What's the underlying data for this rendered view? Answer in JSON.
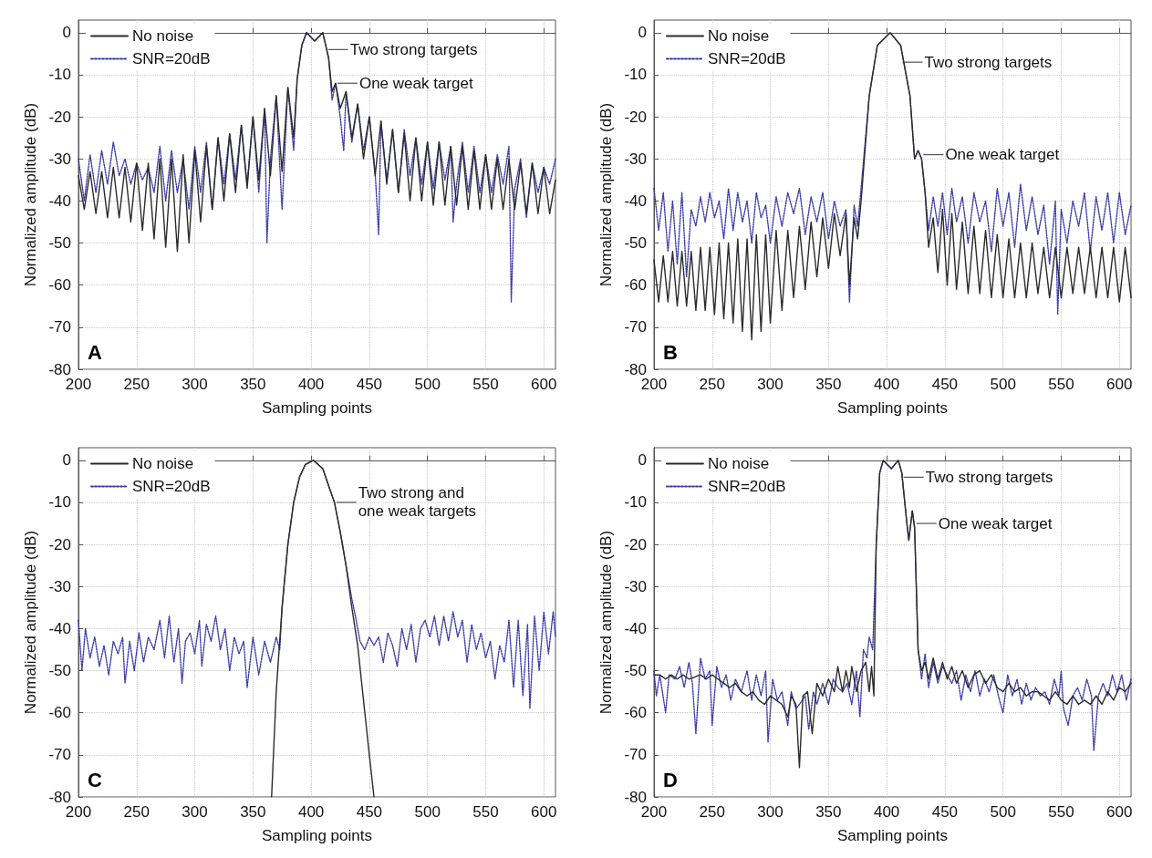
{
  "chart_data": [
    {
      "type": "line",
      "xlabel": "Sampling points",
      "ylabel": "Normalized amplitude (dB)",
      "xlim": [
        200,
        610
      ],
      "ylim": [
        -80,
        3
      ],
      "xticks": [
        200,
        250,
        300,
        350,
        400,
        450,
        500,
        550,
        600
      ],
      "yticks": [
        -80,
        -70,
        -60,
        -50,
        -40,
        -30,
        -20,
        -10,
        0
      ],
      "grid": true,
      "legend": "top left",
      "annotations": [
        {
          "text": "Two strong targets",
          "x": 413,
          "y": -4
        },
        {
          "text": "One weak target",
          "x": 421,
          "y": -12
        },
        "A"
      ],
      "series": [
        {
          "name": "No noise",
          "color": "#2b2b2b",
          "line_style": "solid",
          "x": [
            200,
            205,
            210,
            215,
            220,
            225,
            230,
            235,
            240,
            245,
            250,
            255,
            260,
            265,
            270,
            275,
            280,
            285,
            290,
            295,
            300,
            305,
            310,
            315,
            320,
            325,
            330,
            335,
            340,
            345,
            350,
            355,
            360,
            365,
            370,
            375,
            380,
            385,
            388,
            392,
            396,
            403,
            410,
            415,
            418,
            421,
            425,
            430,
            435,
            440,
            445,
            450,
            455,
            460,
            465,
            470,
            475,
            480,
            485,
            490,
            495,
            500,
            505,
            510,
            515,
            520,
            525,
            530,
            535,
            540,
            545,
            550,
            555,
            560,
            565,
            570,
            575,
            580,
            585,
            590,
            595,
            600,
            605,
            610
          ],
          "values": [
            -34,
            -42,
            -33,
            -43,
            -33,
            -44,
            -32,
            -44,
            -32,
            -45,
            -31,
            -47,
            -31,
            -49,
            -30,
            -51,
            -30,
            -52,
            -29,
            -50,
            -28,
            -45,
            -27,
            -42,
            -25,
            -40,
            -24,
            -38,
            -22,
            -37,
            -20,
            -35,
            -18,
            -34,
            -15,
            -33,
            -13,
            -25,
            -11,
            -3,
            0,
            -2,
            0,
            -6,
            -14,
            -12,
            -18,
            -14,
            -25,
            -17,
            -30,
            -20,
            -34,
            -21,
            -36,
            -23,
            -38,
            -24,
            -40,
            -25,
            -40,
            -26,
            -41,
            -26,
            -41,
            -27,
            -41,
            -27,
            -42,
            -28,
            -42,
            -29,
            -42,
            -30,
            -42,
            -30,
            -42,
            -31,
            -43,
            -31,
            -43,
            -32,
            -43,
            -35
          ]
        },
        {
          "name": "SNR=20dB",
          "color": "#3b3ba8",
          "line_style": "dotted",
          "x": [
            200,
            205,
            210,
            215,
            220,
            225,
            230,
            235,
            240,
            245,
            250,
            255,
            260,
            265,
            270,
            275,
            280,
            285,
            290,
            295,
            300,
            305,
            310,
            315,
            320,
            325,
            330,
            335,
            340,
            345,
            350,
            355,
            360,
            362,
            365,
            370,
            375,
            380,
            385,
            388,
            392,
            396,
            403,
            410,
            415,
            418,
            421,
            425,
            428,
            430,
            435,
            440,
            445,
            450,
            455,
            458,
            460,
            465,
            470,
            475,
            480,
            485,
            490,
            495,
            500,
            505,
            510,
            515,
            520,
            522,
            525,
            530,
            535,
            540,
            545,
            550,
            555,
            560,
            565,
            570,
            572,
            575,
            580,
            585,
            590,
            595,
            600,
            605,
            610
          ],
          "values": [
            -30,
            -40,
            -29,
            -38,
            -28,
            -36,
            -26,
            -34,
            -30,
            -36,
            -31,
            -35,
            -32,
            -38,
            -27,
            -40,
            -28,
            -38,
            -30,
            -42,
            -27,
            -38,
            -26,
            -42,
            -25,
            -36,
            -24,
            -35,
            -22,
            -36,
            -20,
            -38,
            -18,
            -50,
            -30,
            -15,
            -42,
            -13,
            -28,
            -11,
            -3,
            0,
            -2,
            0,
            -6,
            -16,
            -12,
            -20,
            -28,
            -14,
            -26,
            -17,
            -28,
            -20,
            -33,
            -48,
            -21,
            -35,
            -23,
            -38,
            -23,
            -34,
            -25,
            -36,
            -26,
            -37,
            -26,
            -35,
            -27,
            -45,
            -36,
            -26,
            -38,
            -27,
            -38,
            -29,
            -38,
            -29,
            -36,
            -27,
            -64,
            -37,
            -30,
            -44,
            -31,
            -38,
            -32,
            -36,
            -30
          ]
        }
      ]
    },
    {
      "type": "line",
      "xlabel": "Sampling points",
      "ylabel": "Normalized amplitude (dB)",
      "xlim": [
        200,
        610
      ],
      "ylim": [
        -80,
        3
      ],
      "xticks": [
        200,
        250,
        300,
        350,
        400,
        450,
        500,
        550,
        600
      ],
      "yticks": [
        -80,
        -70,
        -60,
        -50,
        -40,
        -30,
        -20,
        -10,
        0
      ],
      "grid": true,
      "legend": "top left",
      "annotations": [
        {
          "text": "Two strong targets",
          "x": 412,
          "y": -7
        },
        {
          "text": "One weak target",
          "x": 430,
          "y": -29
        },
        "B"
      ],
      "series": [
        {
          "name": "No noise",
          "color": "#2b2b2b",
          "line_style": "solid",
          "x": [
            200,
            204,
            208,
            212,
            216,
            220,
            224,
            228,
            232,
            236,
            240,
            244,
            248,
            252,
            256,
            260,
            264,
            268,
            272,
            276,
            280,
            284,
            288,
            292,
            296,
            300,
            305,
            310,
            315,
            320,
            325,
            330,
            335,
            340,
            345,
            350,
            355,
            360,
            365,
            368,
            372,
            375,
            378,
            385,
            392,
            403,
            412,
            420,
            424,
            427,
            430,
            433,
            436,
            440,
            444,
            448,
            452,
            456,
            460,
            465,
            470,
            475,
            480,
            485,
            490,
            495,
            500,
            505,
            510,
            515,
            520,
            525,
            530,
            535,
            540,
            545,
            550,
            555,
            560,
            565,
            570,
            575,
            580,
            585,
            590,
            595,
            600,
            605,
            610
          ],
          "values": [
            -54,
            -64,
            -53,
            -64,
            -52,
            -65,
            -52,
            -65,
            -52,
            -66,
            -51,
            -66,
            -51,
            -67,
            -50,
            -68,
            -50,
            -69,
            -49,
            -71,
            -49,
            -73,
            -48,
            -71,
            -48,
            -69,
            -47,
            -66,
            -47,
            -63,
            -46,
            -61,
            -45,
            -58,
            -44,
            -56,
            -43,
            -53,
            -43,
            -60,
            -44,
            -49,
            -40,
            -15,
            -3,
            0,
            -3,
            -15,
            -30,
            -28,
            -30,
            -38,
            -51,
            -44,
            -57,
            -42,
            -60,
            -43,
            -61,
            -45,
            -62,
            -46,
            -62,
            -47,
            -63,
            -48,
            -63,
            -49,
            -63,
            -50,
            -63,
            -50,
            -62,
            -51,
            -63,
            -51,
            -63,
            -51,
            -62,
            -51,
            -62,
            -51,
            -63,
            -51,
            -63,
            -51,
            -64,
            -51,
            -63
          ]
        },
        {
          "name": "SNR=20dB",
          "color": "#3b3ba8",
          "line_style": "dotted",
          "x": [
            200,
            204,
            208,
            212,
            216,
            220,
            224,
            228,
            232,
            236,
            240,
            244,
            248,
            252,
            256,
            260,
            264,
            268,
            272,
            276,
            280,
            284,
            288,
            292,
            296,
            300,
            305,
            310,
            315,
            320,
            325,
            330,
            335,
            340,
            345,
            350,
            355,
            360,
            365,
            368,
            372,
            375,
            378,
            385,
            392,
            403,
            412,
            420,
            424,
            427,
            430,
            433,
            436,
            440,
            444,
            448,
            452,
            456,
            460,
            465,
            470,
            475,
            480,
            485,
            490,
            495,
            500,
            505,
            510,
            515,
            520,
            525,
            530,
            535,
            540,
            545,
            547,
            550,
            555,
            560,
            565,
            570,
            575,
            580,
            585,
            590,
            595,
            600,
            605,
            610
          ],
          "values": [
            -37,
            -47,
            -38,
            -52,
            -40,
            -55,
            -38,
            -58,
            -42,
            -46,
            -39,
            -45,
            -38,
            -44,
            -40,
            -49,
            -37,
            -47,
            -38,
            -45,
            -40,
            -50,
            -38,
            -44,
            -41,
            -50,
            -39,
            -46,
            -38,
            -43,
            -37,
            -48,
            -39,
            -45,
            -38,
            -49,
            -40,
            -46,
            -42,
            -64,
            -41,
            -46,
            -37,
            -15,
            -3,
            0,
            -3,
            -15,
            -30,
            -28,
            -30,
            -38,
            -47,
            -39,
            -46,
            -38,
            -48,
            -37,
            -45,
            -39,
            -50,
            -38,
            -45,
            -40,
            -52,
            -37,
            -46,
            -38,
            -51,
            -36,
            -47,
            -39,
            -48,
            -41,
            -55,
            -40,
            -67,
            -42,
            -50,
            -40,
            -46,
            -38,
            -52,
            -39,
            -47,
            -38,
            -50,
            -38,
            -48,
            -41
          ]
        }
      ]
    },
    {
      "type": "line",
      "xlabel": "Sampling points",
      "ylabel": "Normalized amplitude (dB)",
      "xlim": [
        200,
        610
      ],
      "ylim": [
        -80,
        3
      ],
      "xticks": [
        200,
        250,
        300,
        350,
        400,
        450,
        500,
        550,
        600
      ],
      "yticks": [
        -80,
        -70,
        -60,
        -50,
        -40,
        -30,
        -20,
        -10,
        0
      ],
      "grid": true,
      "legend": "top left",
      "annotations": [
        {
          "text": "Two strong and\none weak targets",
          "x": 420,
          "y": -10
        },
        "C"
      ],
      "series": [
        {
          "name": "No noise",
          "color": "#2b2b2b",
          "line_style": "solid",
          "x": [
            366,
            370,
            375,
            380,
            385,
            390,
            395,
            402,
            410,
            415,
            420,
            425,
            430,
            435,
            440,
            445,
            450,
            454
          ],
          "values": [
            -80,
            -55,
            -35,
            -20,
            -10,
            -4,
            -1,
            0,
            -2,
            -6,
            -10,
            -17,
            -25,
            -35,
            -44,
            -57,
            -70,
            -80
          ]
        },
        {
          "name": "SNR=20dB",
          "color": "#3b3ba8",
          "line_style": "dotted",
          "x": [
            200,
            203,
            206,
            210,
            214,
            218,
            222,
            226,
            230,
            234,
            238,
            240,
            244,
            248,
            252,
            256,
            260,
            265,
            270,
            274,
            278,
            282,
            286,
            289,
            292,
            296,
            300,
            304,
            306,
            310,
            314,
            318,
            322,
            326,
            330,
            334,
            338,
            342,
            345,
            350,
            355,
            360,
            365,
            370,
            373,
            375,
            380,
            385,
            390,
            395,
            402,
            410,
            415,
            420,
            425,
            430,
            435,
            438,
            442,
            446,
            450,
            454,
            458,
            462,
            466,
            470,
            474,
            478,
            482,
            486,
            490,
            494,
            498,
            502,
            506,
            510,
            514,
            518,
            522,
            526,
            530,
            534,
            538,
            542,
            546,
            550,
            554,
            558,
            562,
            566,
            570,
            574,
            578,
            582,
            586,
            588,
            592,
            596,
            600,
            604,
            608,
            610
          ],
          "values": [
            -38,
            -50,
            -40,
            -47,
            -42,
            -49,
            -44,
            -51,
            -43,
            -46,
            -42,
            -53,
            -43,
            -50,
            -41,
            -48,
            -42,
            -45,
            -38,
            -47,
            -37,
            -48,
            -40,
            -53,
            -43,
            -41,
            -46,
            -38,
            -49,
            -39,
            -43,
            -37,
            -45,
            -40,
            -50,
            -42,
            -46,
            -43,
            -54,
            -42,
            -51,
            -43,
            -48,
            -42,
            -45,
            -35,
            -20,
            -10,
            -4,
            -1,
            0,
            -2,
            -6,
            -10,
            -17,
            -25,
            -33,
            -37,
            -43,
            -45,
            -42,
            -44,
            -42,
            -48,
            -41,
            -44,
            -49,
            -40,
            -45,
            -39,
            -48,
            -40,
            -38,
            -42,
            -37,
            -44,
            -37,
            -43,
            -36,
            -42,
            -38,
            -48,
            -39,
            -45,
            -41,
            -47,
            -43,
            -52,
            -44,
            -48,
            -38,
            -54,
            -38,
            -56,
            -39,
            -59,
            -37,
            -50,
            -36,
            -46,
            -36,
            -42
          ]
        }
      ]
    },
    {
      "type": "line",
      "xlabel": "Sampling points",
      "ylabel": "Normalized amplitude (dB)",
      "xlim": [
        200,
        610
      ],
      "ylim": [
        -80,
        3
      ],
      "xticks": [
        200,
        250,
        300,
        350,
        400,
        450,
        500,
        550,
        600
      ],
      "yticks": [
        -80,
        -70,
        -60,
        -50,
        -40,
        -30,
        -20,
        -10,
        0
      ],
      "grid": true,
      "legend": "top left",
      "annotations": [
        {
          "text": "Two strong targets",
          "x": 413,
          "y": -4
        },
        {
          "text": "One weak target",
          "x": 424,
          "y": -15
        },
        "D"
      ],
      "series": [
        {
          "name": "No noise",
          "color": "#2b2b2b",
          "line_style": "solid",
          "x": [
            200,
            205,
            210,
            215,
            220,
            225,
            230,
            240,
            245,
            250,
            255,
            260,
            265,
            270,
            275,
            280,
            285,
            290,
            295,
            300,
            305,
            310,
            315,
            318,
            322,
            325,
            328,
            332,
            336,
            340,
            345,
            350,
            355,
            358,
            362,
            365,
            368,
            370,
            374,
            378,
            382,
            385,
            387,
            389,
            391,
            394,
            397,
            404,
            410,
            413,
            417,
            419,
            422,
            424,
            427,
            430,
            433,
            436,
            440,
            444,
            448,
            452,
            456,
            460,
            465,
            470,
            475,
            480,
            485,
            490,
            495,
            500,
            505,
            510,
            515,
            520,
            525,
            530,
            535,
            540,
            545,
            550,
            555,
            560,
            565,
            570,
            575,
            580,
            585,
            590,
            595,
            600,
            605,
            610
          ],
          "values": [
            -51,
            -51,
            -52,
            -51,
            -52,
            -51,
            -52,
            -51,
            -52,
            -51,
            -52,
            -53,
            -54,
            -53,
            -55,
            -56,
            -55,
            -57,
            -58,
            -56,
            -57,
            -58,
            -61,
            -56,
            -58,
            -73,
            -56,
            -55,
            -65,
            -53,
            -56,
            -52,
            -55,
            -49,
            -55,
            -50,
            -54,
            -49,
            -55,
            -50,
            -48,
            -55,
            -49,
            -56,
            -20,
            -3,
            0,
            -2,
            0,
            -3,
            -14,
            -19,
            -12,
            -16,
            -45,
            -50,
            -48,
            -52,
            -47,
            -52,
            -48,
            -52,
            -49,
            -53,
            -50,
            -54,
            -51,
            -50,
            -53,
            -51,
            -54,
            -55,
            -53,
            -55,
            -54,
            -56,
            -55,
            -55,
            -56,
            -57,
            -55,
            -57,
            -58,
            -56,
            -58,
            -57,
            -58,
            -56,
            -58,
            -55,
            -57,
            -54,
            -55,
            -53
          ]
        },
        {
          "name": "SNR=20dB",
          "color": "#3b3ba8",
          "line_style": "dotted",
          "x": [
            200,
            202,
            205,
            210,
            213,
            218,
            222,
            226,
            230,
            233,
            236,
            240,
            244,
            248,
            250,
            254,
            258,
            262,
            266,
            270,
            275,
            280,
            284,
            288,
            292,
            296,
            298,
            302,
            306,
            310,
            315,
            318,
            322,
            325,
            330,
            333,
            337,
            340,
            345,
            350,
            354,
            358,
            362,
            366,
            370,
            374,
            377,
            380,
            383,
            385,
            388,
            391,
            394,
            397,
            404,
            410,
            413,
            417,
            419,
            422,
            424,
            427,
            430,
            433,
            436,
            440,
            444,
            448,
            452,
            456,
            460,
            464,
            468,
            472,
            476,
            480,
            484,
            488,
            492,
            496,
            500,
            504,
            508,
            512,
            516,
            520,
            524,
            528,
            532,
            536,
            540,
            544,
            548,
            550,
            552,
            556,
            560,
            564,
            568,
            572,
            576,
            578,
            582,
            586,
            590,
            594,
            598,
            602,
            606,
            610
          ],
          "values": [
            -50,
            -56,
            -51,
            -60,
            -51,
            -52,
            -49,
            -54,
            -48,
            -53,
            -65,
            -47,
            -52,
            -50,
            -63,
            -49,
            -54,
            -51,
            -57,
            -52,
            -55,
            -50,
            -57,
            -51,
            -56,
            -50,
            -67,
            -52,
            -57,
            -55,
            -63,
            -55,
            -59,
            -58,
            -56,
            -64,
            -55,
            -58,
            -53,
            -58,
            -52,
            -54,
            -55,
            -53,
            -58,
            -50,
            -61,
            -45,
            -47,
            -42,
            -45,
            -20,
            -3,
            0,
            -2,
            0,
            -3,
            -14,
            -19,
            -12,
            -16,
            -45,
            -52,
            -46,
            -54,
            -48,
            -53,
            -49,
            -51,
            -53,
            -50,
            -57,
            -51,
            -55,
            -50,
            -56,
            -52,
            -55,
            -51,
            -56,
            -60,
            -51,
            -56,
            -52,
            -58,
            -53,
            -57,
            -54,
            -56,
            -55,
            -58,
            -52,
            -56,
            -50,
            -59,
            -63,
            -56,
            -54,
            -57,
            -52,
            -56,
            -69,
            -56,
            -53,
            -56,
            -51,
            -55,
            -51,
            -57,
            -52
          ]
        }
      ]
    }
  ]
}
